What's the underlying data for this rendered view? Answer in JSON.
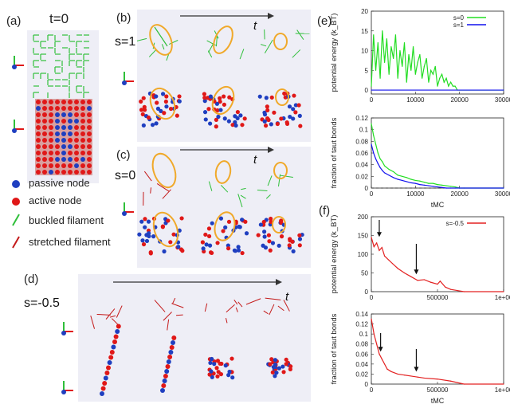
{
  "panels": {
    "a": {
      "label": "(a)",
      "time": "t=0"
    },
    "b": {
      "label": "(b)",
      "s": "s=1",
      "t": "t"
    },
    "c": {
      "label": "(c)",
      "s": "s=0",
      "t": "t"
    },
    "d": {
      "label": "(d)",
      "s": "s=-0.5",
      "t": "t"
    },
    "e": {
      "label": "(e)"
    },
    "f": {
      "label": "(f)"
    }
  },
  "legend": {
    "passive": "passive node",
    "active": "active node",
    "buckled": "buckled filament",
    "stretched": "stretched filament"
  },
  "colors": {
    "passive": "#1f3fc0",
    "active": "#e01818",
    "buckled": "#2fbf3a",
    "stretched": "#c41a1a",
    "highlight": "#f0a92a",
    "panel": "#eeeef6",
    "green": "#22dd22",
    "blue": "#1111ee",
    "red": "#e32020"
  },
  "chart_data": [
    {
      "id": "e-top",
      "type": "line",
      "ylabel": "potential energy (k_BT)",
      "xlabel": "",
      "xlim": [
        0,
        30000
      ],
      "ylim": [
        -1,
        20
      ],
      "xticks": [
        "0",
        "10000",
        "20000",
        "30000"
      ],
      "yticks": [
        "0",
        "5",
        "10",
        "15",
        "20"
      ],
      "legend": [
        "s=0",
        "s=1"
      ],
      "series": [
        {
          "name": "s=0",
          "x": [
            0,
            500,
            1000,
            1500,
            2000,
            2500,
            3000,
            3500,
            4000,
            4500,
            5000,
            5500,
            6000,
            6500,
            7000,
            7500,
            8000,
            8500,
            9000,
            9500,
            10000,
            10500,
            11000,
            11500,
            12000,
            12500,
            13000,
            13500,
            14000,
            14500,
            15000,
            15500,
            16000,
            16500,
            17000,
            17500,
            18000,
            18500,
            19000,
            19500,
            20000,
            30000
          ],
          "y": [
            1,
            14,
            5,
            12,
            3,
            15,
            7,
            13,
            4,
            11,
            8,
            14,
            3,
            10,
            6,
            12,
            2,
            9,
            5,
            11,
            4,
            7,
            9,
            3,
            6,
            8,
            2,
            5,
            4,
            6,
            1,
            3,
            4,
            2,
            3,
            1,
            2,
            1,
            1,
            0,
            0,
            0
          ]
        },
        {
          "name": "s=1",
          "x": [
            0,
            30000
          ],
          "y": [
            0,
            0
          ]
        }
      ]
    },
    {
      "id": "e-bottom",
      "type": "line",
      "ylabel": "fraction of taut bonds",
      "xlabel": "tMC",
      "xlim": [
        0,
        30000
      ],
      "ylim": [
        0,
        0.12
      ],
      "xticks": [
        "0",
        "10000",
        "20000",
        "30000"
      ],
      "yticks": [
        "0",
        "0.02",
        "0.04",
        "0.06",
        "0.08",
        "0.1",
        "0.12"
      ],
      "series": [
        {
          "name": "s=0",
          "x": [
            0,
            500,
            1000,
            1500,
            2000,
            2500,
            3000,
            4000,
            5000,
            6000,
            7000,
            8000,
            9000,
            10000,
            11000,
            12000,
            13000,
            14000,
            15000,
            16000,
            17000,
            18000,
            19000,
            20000,
            21000,
            30000
          ],
          "y": [
            0.11,
            0.09,
            0.075,
            0.06,
            0.05,
            0.045,
            0.038,
            0.032,
            0.028,
            0.022,
            0.02,
            0.018,
            0.015,
            0.013,
            0.012,
            0.01,
            0.008,
            0.008,
            0.006,
            0.005,
            0.004,
            0.003,
            0.002,
            0.0,
            0.0,
            0.0
          ]
        },
        {
          "name": "s=1",
          "x": [
            0,
            500,
            1000,
            1500,
            2000,
            2500,
            3000,
            4000,
            5000,
            6000,
            7000,
            8000,
            9000,
            10000,
            11000,
            12000,
            13000,
            14000,
            15000,
            16000,
            17000,
            18000,
            19000,
            20000,
            30000
          ],
          "y": [
            0.075,
            0.06,
            0.05,
            0.042,
            0.035,
            0.03,
            0.026,
            0.022,
            0.018,
            0.015,
            0.013,
            0.011,
            0.009,
            0.008,
            0.006,
            0.005,
            0.004,
            0.003,
            0.002,
            0.001,
            0.0,
            0.0,
            0.0,
            0.0,
            0.0
          ]
        }
      ]
    },
    {
      "id": "f-top",
      "type": "line",
      "ylabel": "potential energy (k_BT)",
      "xlabel": "",
      "xlim": [
        0,
        1000000
      ],
      "ylim": [
        0,
        200
      ],
      "xticks": [
        "0",
        "500000",
        "1e+06"
      ],
      "yticks": [
        "0",
        "50",
        "100",
        "150",
        "200"
      ],
      "legend": [
        "s=-0.5"
      ],
      "series": [
        {
          "name": "s=-0.5",
          "x": [
            0,
            20000,
            40000,
            60000,
            80000,
            100000,
            130000,
            160000,
            200000,
            250000,
            300000,
            350000,
            400000,
            450000,
            500000,
            520000,
            560000,
            600000,
            650000,
            700000,
            1000000
          ],
          "y": [
            145,
            120,
            130,
            110,
            118,
            95,
            85,
            75,
            62,
            50,
            40,
            30,
            32,
            25,
            20,
            28,
            12,
            6,
            3,
            0,
            0
          ]
        }
      ]
    },
    {
      "id": "f-bottom",
      "type": "line",
      "ylabel": "fraction of taut bonds",
      "xlabel": "tMC",
      "xlim": [
        0,
        1000000
      ],
      "ylim": [
        0,
        0.14
      ],
      "xticks": [
        "0",
        "500000",
        "1e+06"
      ],
      "yticks": [
        "0",
        "0.02",
        "0.04",
        "0.06",
        "0.08",
        "0.1",
        "0.12",
        "0.14"
      ],
      "series": [
        {
          "name": "s=-0.5",
          "x": [
            0,
            20000,
            40000,
            60000,
            80000,
            100000,
            120000,
            150000,
            200000,
            250000,
            300000,
            350000,
            400000,
            500000,
            600000,
            700000,
            1000000
          ],
          "y": [
            0.13,
            0.1,
            0.08,
            0.06,
            0.05,
            0.04,
            0.03,
            0.025,
            0.02,
            0.018,
            0.016,
            0.014,
            0.012,
            0.01,
            0.006,
            0.0,
            0.0
          ]
        }
      ]
    }
  ]
}
